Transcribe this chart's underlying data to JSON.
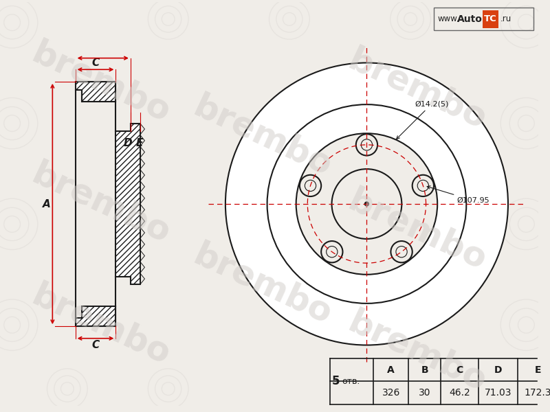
{
  "bg_color": "#f0ede8",
  "line_color": "#1a1a1a",
  "red_color": "#cc0000",
  "watermark_color": "#d0ccc8",
  "table_headers": [
    "",
    "A",
    "B",
    "C",
    "D",
    "E"
  ],
  "table_row1": [
    "5 отв.",
    "326",
    "30",
    "46.2",
    "71.03",
    "172.3"
  ],
  "annotation_bolt_circle": "Ø107.95",
  "annotation_bolt_hole": "Ø14.2(5)",
  "num_bolts": 5,
  "logo_text_www": "www.",
  "logo_text_auto": "Auto",
  "logo_text_tc": "TC",
  "logo_text_ru": ".ru"
}
